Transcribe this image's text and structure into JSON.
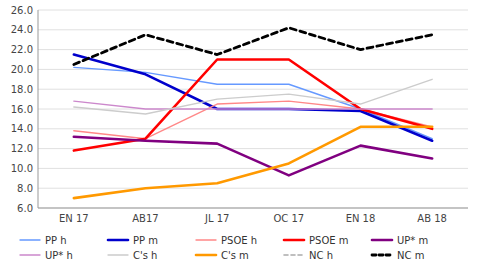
{
  "chart_data": {
    "type": "line",
    "categories": [
      "EN 17",
      "AB17",
      "JL 17",
      "OC 17",
      "EN 18",
      "AB 18"
    ],
    "series": [
      {
        "name": "PP h",
        "color": "#6699ff",
        "line_style": "solid",
        "values": [
          20.2,
          19.7,
          18.5,
          18.5,
          16.0,
          13.0
        ]
      },
      {
        "name": "PP m",
        "color": "#0000cc",
        "line_style": "solid",
        "values": [
          21.5,
          19.5,
          16.0,
          16.0,
          15.8,
          12.8
        ]
      },
      {
        "name": "PSOE h",
        "color": "#ff8888",
        "line_style": "solid",
        "values": [
          13.8,
          13.0,
          16.5,
          16.8,
          16.0,
          14.2
        ]
      },
      {
        "name": "PSOE m",
        "color": "#ff0000",
        "line_style": "solid",
        "values": [
          11.8,
          13.0,
          21.0,
          21.0,
          16.0,
          14.0
        ]
      },
      {
        "name": "UP* m",
        "color": "#800080",
        "line_style": "solid",
        "values": [
          13.2,
          12.8,
          12.5,
          9.3,
          12.3,
          11.0
        ]
      },
      {
        "name": "UP* h",
        "color": "#cc88cc",
        "line_style": "solid",
        "values": [
          16.8,
          16.0,
          16.0,
          16.0,
          16.0,
          16.0
        ]
      },
      {
        "name": "C's h",
        "color": "#cccccc",
        "line_style": "solid",
        "values": [
          16.2,
          15.5,
          17.0,
          17.5,
          16.5,
          19.0
        ]
      },
      {
        "name": "C's m",
        "color": "#ff9900",
        "line_style": "solid",
        "values": [
          7.0,
          8.0,
          8.5,
          10.5,
          14.2,
          14.2
        ]
      },
      {
        "name": "NC h",
        "color": "#aaaaaa",
        "line_style": "dashed",
        "values": [
          20.5,
          23.5,
          21.5,
          24.2,
          22.0,
          23.5
        ]
      },
      {
        "name": "NC m",
        "color": "#000000",
        "line_style": "dashed",
        "values": [
          20.5,
          23.5,
          21.5,
          24.2,
          22.0,
          23.5
        ]
      }
    ],
    "ylim": [
      6.0,
      26.0
    ],
    "yticks": [
      {
        "value": 6.0,
        "label": "6.0"
      },
      {
        "value": 8.0,
        "label": "8.0"
      },
      {
        "value": 10.0,
        "label": "10.0"
      },
      {
        "value": 12.0,
        "label": "12.0"
      },
      {
        "value": 14.0,
        "label": "14.0"
      },
      {
        "value": 16.0,
        "label": "16.0"
      },
      {
        "value": 18.0,
        "label": "18.0"
      },
      {
        "value": 20.0,
        "label": "20.0"
      },
      {
        "value": 22.0,
        "label": "22.0"
      },
      {
        "value": 24.0,
        "label": "24.0"
      },
      {
        "value": 26.0,
        "label": "26.0"
      }
    ],
    "grid": true,
    "legend": "bottom"
  }
}
